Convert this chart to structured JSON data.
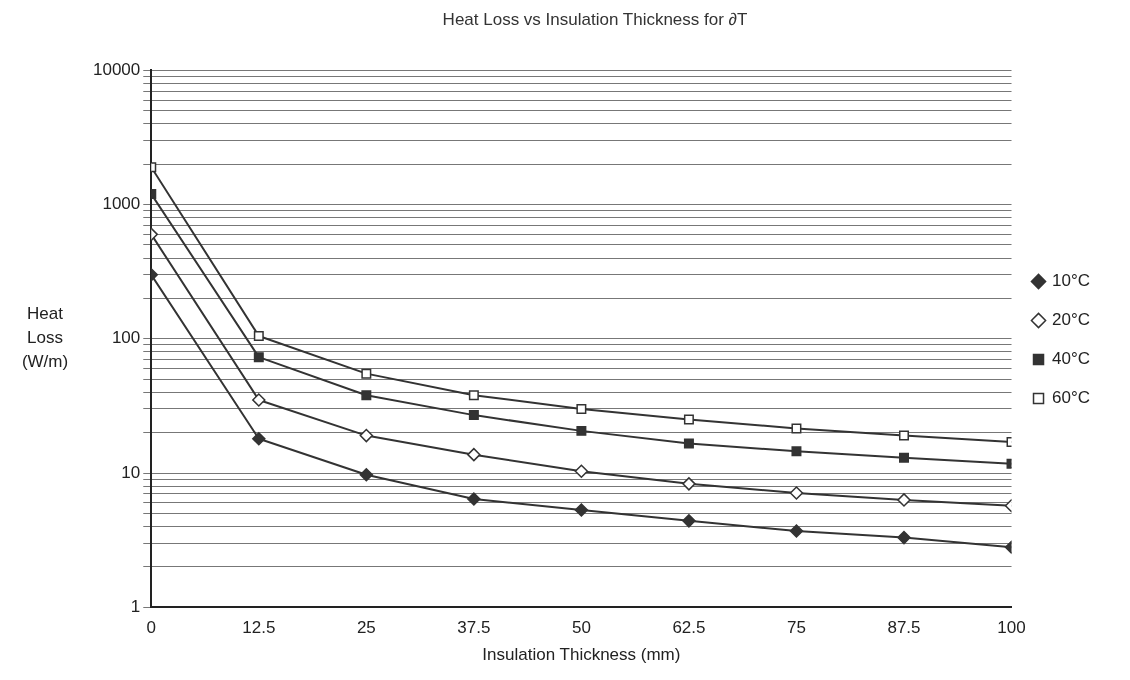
{
  "chart_data": {
    "type": "line",
    "title": "Heat Loss vs Insulation Thickness for ∂T",
    "xlabel": "Insulation Thickness (mm)",
    "ylabel": "Heat Loss (W/m)",
    "x": [
      0,
      12.5,
      25,
      37.5,
      50,
      62.5,
      75,
      87.5,
      100
    ],
    "series": [
      {
        "name": "10°C",
        "color": "#333333",
        "marker": "diamond",
        "values": [
          300,
          18,
          9.7,
          6.4,
          5.3,
          4.4,
          3.7,
          3.3,
          2.8
        ]
      },
      {
        "name": "20°C",
        "color": "#333333",
        "marker": "diamond-open",
        "values": [
          600,
          35,
          19,
          13.7,
          10.3,
          8.3,
          7.1,
          6.3,
          5.7
        ]
      },
      {
        "name": "40°C",
        "color": "#333333",
        "marker": "square",
        "values": [
          1200,
          73,
          38,
          27,
          20.6,
          16.6,
          14.5,
          13,
          11.7
        ]
      },
      {
        "name": "60°C",
        "color": "#333333",
        "marker": "square-open",
        "values": [
          1900,
          105,
          55,
          38,
          30,
          25,
          21.5,
          19,
          17
        ]
      }
    ],
    "log": "y",
    "xlim": [
      0,
      100
    ],
    "xticks": [
      0,
      12.5,
      25,
      37.5,
      50,
      62.5,
      75,
      87.5,
      100
    ],
    "ylim": [
      1,
      10000
    ],
    "yticks": [
      1,
      {
        "value": 2,
        "label": null
      },
      {
        "value": 3,
        "label": null
      },
      {
        "value": 4,
        "label": null
      },
      {
        "value": 5,
        "label": null
      },
      {
        "value": 6,
        "label": null
      },
      {
        "value": 7,
        "label": null
      },
      {
        "value": 8,
        "label": null
      },
      {
        "value": 9,
        "label": null
      },
      10,
      {
        "value": 20,
        "label": null
      },
      {
        "value": 30,
        "label": null
      },
      {
        "value": 40,
        "label": null
      },
      {
        "value": 50,
        "label": null
      },
      {
        "value": 60,
        "label": null
      },
      {
        "value": 70,
        "label": null
      },
      {
        "value": 80,
        "label": null
      },
      {
        "value": 90,
        "label": null
      },
      100,
      {
        "value": 200,
        "label": null
      },
      {
        "value": 300,
        "label": null
      },
      {
        "value": 400,
        "label": null
      },
      {
        "value": 500,
        "label": null
      },
      {
        "value": 600,
        "label": null
      },
      {
        "value": 700,
        "label": null
      },
      {
        "value": 800,
        "label": null
      },
      {
        "value": 900,
        "label": null
      },
      1000,
      {
        "value": 2000,
        "label": null
      },
      {
        "value": 3000,
        "label": null
      },
      {
        "value": 4000,
        "label": null
      },
      {
        "value": 5000,
        "label": null
      },
      {
        "value": 6000,
        "label": null
      },
      {
        "value": 7000,
        "label": null
      },
      {
        "value": 8000,
        "label": null
      },
      {
        "value": 9000,
        "label": null
      },
      10000
    ],
    "grid": "y",
    "legend": "right",
    "line_style": "solid"
  }
}
